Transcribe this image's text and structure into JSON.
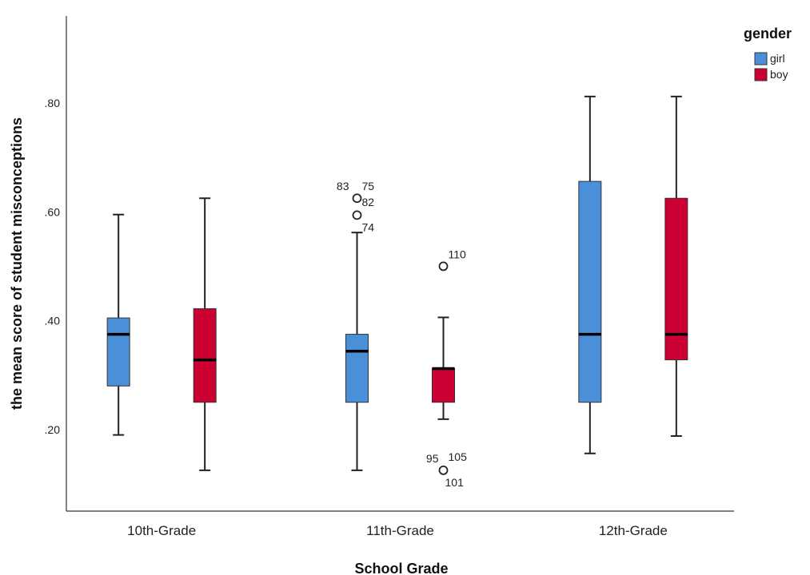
{
  "chart_data": {
    "type": "boxplot",
    "xlabel": "School Grade",
    "ylabel": "the mean score of student misconceptions",
    "ylim": [
      0.05,
      0.96
    ],
    "yticks": [
      {
        "value": 0.2,
        "label": ".20"
      },
      {
        "value": 0.4,
        "label": ".40"
      },
      {
        "value": 0.6,
        "label": ".60"
      },
      {
        "value": 0.8,
        "label": ".80"
      }
    ],
    "categories": [
      "10th-Grade",
      "11th-Grade",
      "12th-Grade"
    ],
    "legend": {
      "title": "gender",
      "placement": "top-right",
      "entries": [
        {
          "name": "girl",
          "color": "#4a90d9"
        },
        {
          "name": "boy",
          "color": "#cc0033"
        }
      ]
    },
    "series": [
      {
        "name": "girl",
        "color": "#4a90d9",
        "boxes": [
          {
            "min": 0.19,
            "q1": 0.28,
            "median": 0.375,
            "q3": 0.405,
            "max": 0.595,
            "outliers": []
          },
          {
            "min": 0.125,
            "q1": 0.25,
            "median": 0.344,
            "q3": 0.375,
            "max": 0.562,
            "outliers": [
              {
                "value": 0.625,
                "labels": [
                  "83",
                  "75",
                  "82"
                ]
              },
              {
                "value": 0.594,
                "labels": [
                  "74"
                ]
              }
            ]
          },
          {
            "min": 0.156,
            "q1": 0.25,
            "median": 0.375,
            "q3": 0.656,
            "max": 0.812,
            "outliers": []
          }
        ]
      },
      {
        "name": "boy",
        "color": "#cc0033",
        "boxes": [
          {
            "min": 0.125,
            "q1": 0.25,
            "median": 0.328,
            "q3": 0.422,
            "max": 0.625,
            "outliers": []
          },
          {
            "min": 0.219,
            "q1": 0.25,
            "median": 0.312,
            "q3": 0.312,
            "max": 0.406,
            "outliers": [
              {
                "value": 0.5,
                "labels": [
                  "110"
                ]
              },
              {
                "value": 0.125,
                "labels": [
                  "95",
                  "105",
                  "101"
                ]
              }
            ]
          },
          {
            "min": 0.188,
            "q1": 0.328,
            "median": 0.375,
            "q3": 0.625,
            "max": 0.812,
            "outliers": []
          }
        ]
      }
    ]
  }
}
